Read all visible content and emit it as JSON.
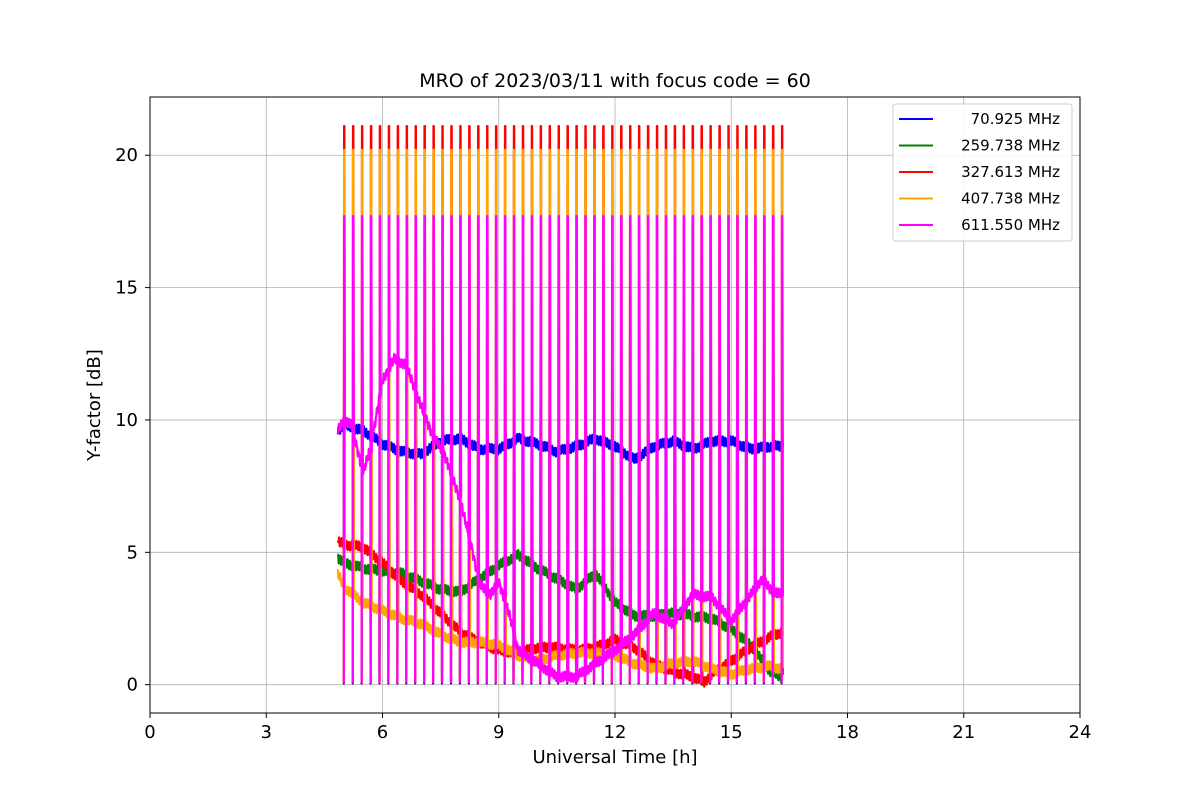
{
  "chart_data": {
    "type": "line",
    "title": "MRO of 2023/03/11 with focus code = 60",
    "xlabel": "Universal Time [h]",
    "ylabel": "Y-factor [dB]",
    "xlim": [
      0,
      24
    ],
    "ylim": [
      -1.07,
      22.2
    ],
    "xticks": [
      0,
      3,
      6,
      9,
      12,
      15,
      18,
      21,
      24
    ],
    "yticks": [
      0,
      5,
      10,
      15,
      20
    ],
    "grid": true,
    "legend_position": "top-right",
    "data_range_x": [
      4.85,
      16.3
    ],
    "calibration_pulses": {
      "start_hour": 5.0,
      "end_hour": 16.3,
      "count": 50,
      "description_peaks_db": {
        "70.925 MHz": 10.0,
        "259.738 MHz": 5.0,
        "327.613 MHz": 21.1,
        "407.738 MHz": 20.2,
        "611.550 MHz": 17.7
      },
      "base_db": {
        "70.925 MHz": 0.05,
        "259.738 MHz": 0.5,
        "327.613 MHz": 0.1,
        "407.738 MHz": 0.1,
        "611.550 MHz": 0.1
      }
    },
    "series": [
      {
        "name": "70.925 MHz",
        "color": "#0000ff",
        "x": [
          4.85,
          5.0,
          5.5,
          6.0,
          6.5,
          7.0,
          7.5,
          8.0,
          8.5,
          9.0,
          9.5,
          10.0,
          10.5,
          11.0,
          11.5,
          12.0,
          12.5,
          13.0,
          13.5,
          14.0,
          14.5,
          15.0,
          15.5,
          16.0,
          16.3
        ],
        "y": [
          9.6,
          9.8,
          9.6,
          9.1,
          8.8,
          8.7,
          9.2,
          9.3,
          8.9,
          8.9,
          9.3,
          9.1,
          8.8,
          9.0,
          9.3,
          9.0,
          8.5,
          9.0,
          9.2,
          8.9,
          9.2,
          9.2,
          8.9,
          9.0,
          9.0
        ]
      },
      {
        "name": "259.738 MHz",
        "color": "#008000",
        "x": [
          4.85,
          5.0,
          5.5,
          6.0,
          6.5,
          7.0,
          7.5,
          8.0,
          8.5,
          9.0,
          9.5,
          10.0,
          10.5,
          11.0,
          11.5,
          12.0,
          12.5,
          13.0,
          13.5,
          14.0,
          14.5,
          15.0,
          15.5,
          16.0,
          16.3
        ],
        "y": [
          4.8,
          4.6,
          4.4,
          4.3,
          4.2,
          3.9,
          3.6,
          3.5,
          4.0,
          4.5,
          4.9,
          4.4,
          4.0,
          3.6,
          4.2,
          3.1,
          2.6,
          2.6,
          2.7,
          2.6,
          2.5,
          2.1,
          1.5,
          0.5,
          0.3
        ]
      },
      {
        "name": "327.613 MHz",
        "color": "#ff0000",
        "x": [
          4.85,
          5.0,
          5.5,
          6.0,
          6.5,
          7.0,
          7.5,
          8.0,
          8.5,
          9.0,
          9.5,
          10.0,
          10.5,
          11.0,
          11.5,
          12.0,
          12.5,
          13.0,
          13.5,
          14.0,
          14.3,
          14.5,
          15.0,
          15.5,
          16.0,
          16.3
        ],
        "y": [
          5.4,
          5.3,
          5.2,
          4.6,
          3.9,
          3.4,
          2.7,
          2.0,
          1.6,
          1.3,
          1.2,
          1.4,
          1.4,
          1.3,
          1.4,
          1.7,
          1.4,
          0.8,
          0.5,
          0.3,
          0.1,
          0.4,
          0.9,
          1.4,
          1.8,
          2.0
        ]
      },
      {
        "name": "407.738 MHz",
        "color": "#ffa500",
        "x": [
          4.85,
          5.0,
          5.5,
          6.0,
          6.5,
          7.0,
          7.5,
          8.0,
          8.5,
          9.0,
          9.5,
          10.0,
          10.5,
          11.0,
          11.5,
          12.0,
          12.5,
          13.0,
          13.5,
          14.0,
          14.5,
          15.0,
          15.5,
          16.0,
          16.3
        ],
        "y": [
          4.2,
          3.7,
          3.1,
          2.8,
          2.5,
          2.3,
          1.9,
          1.6,
          1.6,
          1.5,
          1.1,
          0.9,
          1.1,
          1.2,
          1.2,
          1.1,
          0.8,
          0.6,
          0.8,
          0.9,
          0.6,
          0.4,
          0.6,
          0.7,
          0.6
        ]
      },
      {
        "name": "611.550 MHz",
        "color": "#ff00ff",
        "x": [
          4.85,
          5.0,
          5.2,
          5.5,
          5.7,
          6.0,
          6.3,
          6.6,
          7.0,
          7.3,
          7.6,
          8.0,
          8.3,
          8.5,
          8.8,
          9.0,
          9.3,
          9.5,
          10.0,
          10.5,
          11.0,
          11.5,
          12.0,
          12.5,
          13.0,
          13.5,
          14.0,
          14.5,
          15.0,
          15.5,
          15.8,
          16.0,
          16.3
        ],
        "y": [
          9.6,
          10.0,
          9.8,
          8.0,
          9.0,
          11.5,
          12.3,
          12.1,
          10.5,
          9.4,
          8.7,
          7.0,
          5.2,
          3.8,
          3.4,
          3.9,
          2.5,
          1.3,
          0.8,
          0.3,
          0.3,
          0.8,
          1.3,
          1.9,
          2.7,
          2.3,
          3.4,
          3.3,
          2.4,
          3.4,
          4.0,
          3.6,
          3.4
        ]
      }
    ]
  }
}
